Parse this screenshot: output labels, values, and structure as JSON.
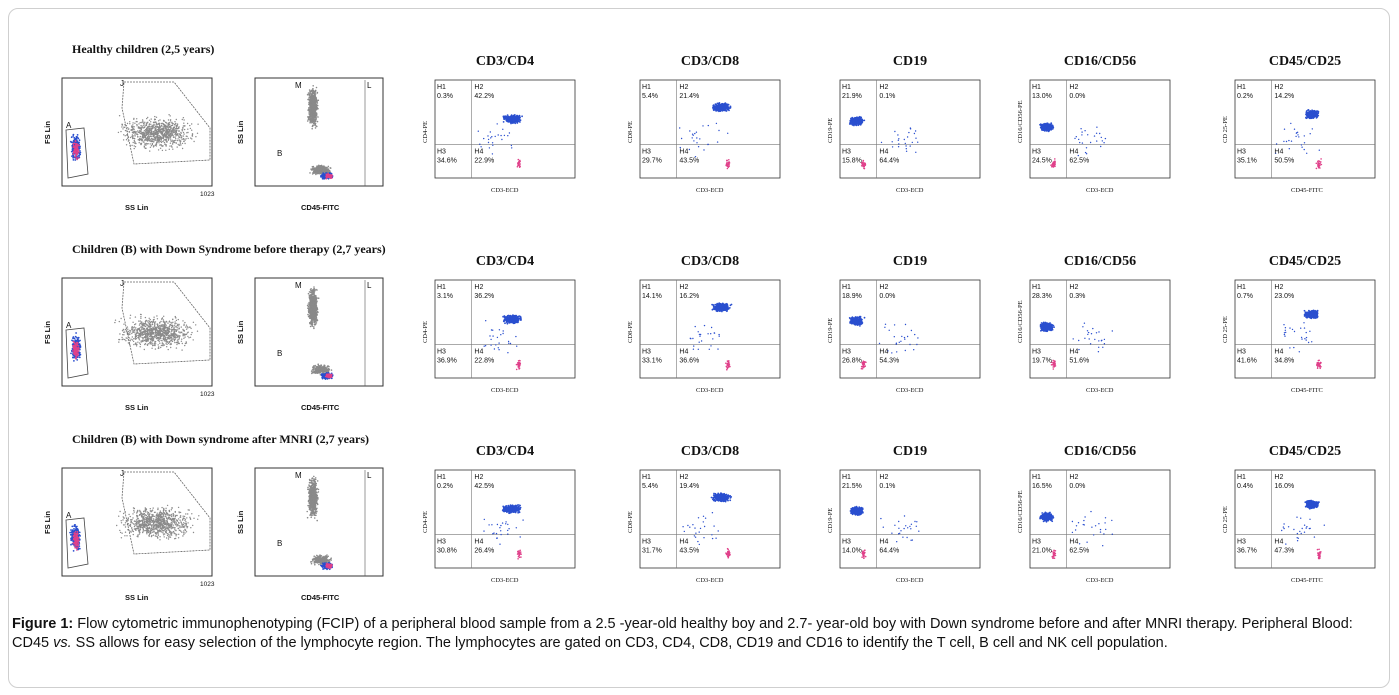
{
  "figure": {
    "rows": [
      {
        "title": "Healthy children (2,5 years)",
        "scatter1": {
          "ylabel": "FS Lin",
          "xlabel": "SS Lin",
          "gates": [
            "A",
            "J"
          ],
          "xtick": "1023"
        },
        "scatter2": {
          "ylabel": "SS Lin",
          "xlabel": "CD45-FITC",
          "gates": [
            "M",
            "B",
            "L"
          ]
        },
        "quads": [
          {
            "title": "CD3/CD4",
            "ylabel": "CD4-PE",
            "xlabel": "CD3-ECD",
            "labels": [
              "H1",
              "H2",
              "H3",
              "H4"
            ],
            "values": [
              "0.3%",
              "42.2%",
              "34.6%",
              "22.9%"
            ]
          },
          {
            "title": "CD3/CD8",
            "ylabel": "CD8-PE",
            "xlabel": "CD3-ECD",
            "labels": [
              "H1",
              "H2",
              "H3",
              "H4"
            ],
            "values": [
              "5.4%",
              "21.4%",
              "29.7%",
              "43.5%"
            ]
          },
          {
            "title": "CD19",
            "ylabel": "CD19-PE",
            "xlabel": "CD3-ECD",
            "labels": [
              "H1",
              "H2",
              "H3",
              "H4"
            ],
            "values": [
              "21.9%",
              "0.1%",
              "15.8%",
              "64.4%"
            ]
          },
          {
            "title": "CD16/CD56",
            "ylabel": "CD16/CD56-PE",
            "xlabel": "CD3-ECD",
            "labels": [
              "H1",
              "H2",
              "H3",
              "H4"
            ],
            "values": [
              "13.0%",
              "0.0%",
              "24.5%",
              "62.5%"
            ]
          },
          {
            "title": "CD45/CD25",
            "ylabel": "CD 25-PE",
            "xlabel": "CD45-FITC",
            "labels": [
              "H1",
              "H2",
              "H3",
              "H4"
            ],
            "values": [
              "0.2%",
              "14.2%",
              "35.1%",
              "50.5%"
            ]
          }
        ]
      },
      {
        "title": "Children (B) with Down Syndrome before therapy  (2,7 years)",
        "scatter1": {
          "ylabel": "FS Lin",
          "xlabel": "SS Lin",
          "gates": [
            "A",
            "J"
          ],
          "xtick": "1023"
        },
        "scatter2": {
          "ylabel": "SS Lin",
          "xlabel": "CD45-FITC",
          "gates": [
            "M",
            "B",
            "L"
          ]
        },
        "quads": [
          {
            "title": "CD3/CD4",
            "ylabel": "CD4-PE",
            "xlabel": "CD3-ECD",
            "labels": [
              "H1",
              "H2",
              "H3",
              "H4"
            ],
            "values": [
              "3.1%",
              "36.2%",
              "36.9%",
              "22.8%"
            ]
          },
          {
            "title": "CD3/CD8",
            "ylabel": "CD8-PE",
            "xlabel": "CD3-ECD",
            "labels": [
              "H1",
              "H2",
              "H3",
              "H4"
            ],
            "values": [
              "14.1%",
              "16.2%",
              "33.1%",
              "36.6%"
            ]
          },
          {
            "title": "CD19",
            "ylabel": "CD19-PE",
            "xlabel": "CD3-ECD",
            "labels": [
              "H1",
              "H2",
              "H3",
              "H4"
            ],
            "values": [
              "18.9%",
              "0.0%",
              "26.8%",
              "54.3%"
            ]
          },
          {
            "title": "CD16/CD56",
            "ylabel": "CD16/CD56-PE",
            "xlabel": "CD3-ECD",
            "labels": [
              "H1",
              "H2",
              "H3",
              "H4"
            ],
            "values": [
              "28.3%",
              "0.3%",
              "19.7%",
              "51.6%"
            ]
          },
          {
            "title": "CD45/CD25",
            "ylabel": "CD 25-PE",
            "xlabel": "CD45-FITC",
            "labels": [
              "H1",
              "H2",
              "H3",
              "H4"
            ],
            "values": [
              "0.7%",
              "23.0%",
              "41.6%",
              "34.8%"
            ]
          }
        ]
      },
      {
        "title": "Children (B) with Down syndrome after MNRI  (2,7 years)",
        "scatter1": {
          "ylabel": "FS Lin",
          "xlabel": "SS Lin",
          "gates": [
            "A",
            "J"
          ],
          "xtick": "1023"
        },
        "scatter2": {
          "ylabel": "SS Lin",
          "xlabel": "CD45-FITC",
          "gates": [
            "M",
            "B",
            "L"
          ]
        },
        "quads": [
          {
            "title": "CD3/CD4",
            "ylabel": "CD4-PE",
            "xlabel": "CD3-ECD",
            "labels": [
              "H1",
              "H2",
              "H3",
              "H4"
            ],
            "values": [
              "0.2%",
              "42.5%",
              "30.8%",
              "26.4%"
            ]
          },
          {
            "title": "CD3/CD8",
            "ylabel": "CD8-PE",
            "xlabel": "CD3-ECD",
            "labels": [
              "H1",
              "H2",
              "H3",
              "H4"
            ],
            "values": [
              "5.4%",
              "19.4%",
              "31.7%",
              "43.5%"
            ]
          },
          {
            "title": "CD19",
            "ylabel": "CD19-PE",
            "xlabel": "CD3-ECD",
            "labels": [
              "H1",
              "H2",
              "H3",
              "H4"
            ],
            "values": [
              "21.5%",
              "0.1%",
              "14.0%",
              "64.4%"
            ]
          },
          {
            "title": "CD16/CD56",
            "ylabel": "CD16/CD56-PE",
            "xlabel": "CD3-ECD",
            "labels": [
              "H1",
              "H2",
              "H3",
              "H4"
            ],
            "values": [
              "16.5%",
              "0.0%",
              "21.0%",
              "62.5%"
            ]
          },
          {
            "title": "CD45/CD25",
            "ylabel": "CD 25-PE",
            "xlabel": "CD45-FITC",
            "labels": [
              "H1",
              "H2",
              "H3",
              "H4"
            ],
            "values": [
              "0.4%",
              "16.0%",
              "36.7%",
              "47.3%"
            ]
          }
        ]
      }
    ]
  },
  "caption": {
    "label": "Figure 1:",
    "text_part1": " Flow cytometric immunophenotyping (FCIP) of a peripheral blood sample from a 2.5 -year-old healthy boy and 2.7- year-old boy with Down syndrome before and after MNRI therapy. Peripheral Blood: CD45 ",
    "vs": "vs.",
    "text_part2": " SS allows for easy selection of the lymphocyte region. The lymphocytes are gated on CD3, CD4, CD8, CD19 and CD16 to identify the T cell, B cell and NK cell population."
  },
  "colors": {
    "blue": "#2a4fcf",
    "pink": "#e0408a",
    "magenta": "#c0307a",
    "gray": "#8a8a8a",
    "axis": "#333333"
  }
}
